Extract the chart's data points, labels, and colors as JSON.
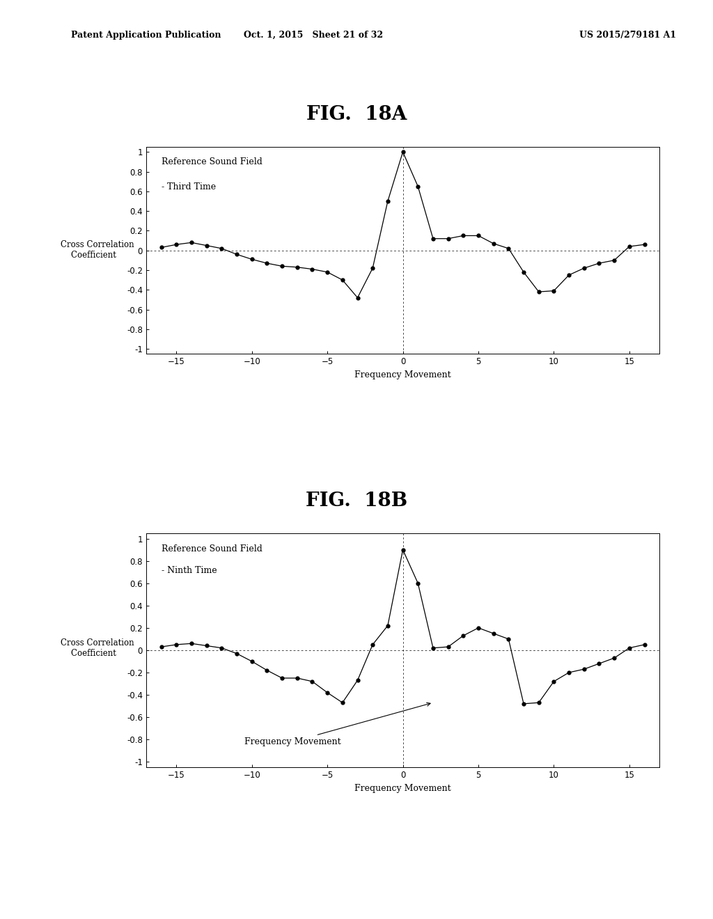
{
  "fig18a_title": "FIG.  18A",
  "fig18b_title": "FIG.  18B",
  "ylabel": "Cross Correlation\n  Coefficient",
  "xlabel": "Frequency Movement",
  "fig18a_label1": "Reference Sound Field",
  "fig18a_label2": "- Third Time",
  "fig18b_label1": "Reference Sound Field",
  "fig18b_label2": "- Ninth Time",
  "fig18b_annotation": "Frequency Movement",
  "xlim": [
    -17,
    17
  ],
  "ylim": [
    -1.05,
    1.05
  ],
  "yticks": [
    -1,
    -0.8,
    -0.6,
    -0.4,
    -0.2,
    0,
    0.2,
    0.4,
    0.6,
    0.8,
    1
  ],
  "xticks": [
    -15,
    -10,
    -5,
    0,
    5,
    10,
    15
  ],
  "fig18a_x": [
    -16,
    -15,
    -14,
    -13,
    -12,
    -11,
    -10,
    -9,
    -8,
    -7,
    -6,
    -5,
    -4,
    -3,
    -2,
    -1,
    0,
    1,
    2,
    3,
    4,
    5,
    6,
    7,
    8,
    9,
    10,
    11,
    12,
    13,
    14,
    15,
    16
  ],
  "fig18a_y": [
    0.03,
    0.06,
    0.08,
    0.05,
    0.02,
    -0.04,
    -0.09,
    -0.13,
    -0.16,
    -0.17,
    -0.19,
    -0.22,
    -0.3,
    -0.48,
    -0.18,
    0.5,
    1.0,
    0.65,
    0.12,
    0.12,
    0.15,
    0.15,
    0.07,
    0.02,
    -0.22,
    -0.42,
    -0.41,
    -0.25,
    -0.18,
    -0.13,
    -0.1,
    0.04,
    0.06
  ],
  "fig18b_x": [
    -16,
    -15,
    -14,
    -13,
    -12,
    -11,
    -10,
    -9,
    -8,
    -7,
    -6,
    -5,
    -4,
    -3,
    -2,
    -1,
    0,
    1,
    2,
    3,
    4,
    5,
    6,
    7,
    8,
    9,
    10,
    11,
    12,
    13,
    14,
    15,
    16
  ],
  "fig18b_y": [
    0.03,
    0.05,
    0.06,
    0.04,
    0.02,
    -0.03,
    -0.1,
    -0.18,
    -0.25,
    -0.25,
    -0.28,
    -0.38,
    -0.47,
    -0.27,
    0.05,
    0.22,
    0.9,
    0.6,
    0.02,
    0.03,
    0.13,
    0.2,
    0.15,
    0.1,
    -0.48,
    -0.47,
    -0.28,
    -0.2,
    -0.17,
    -0.12,
    -0.07,
    0.02,
    0.05
  ],
  "background_color": "#ffffff",
  "line_color": "#000000",
  "dot_color": "#000000",
  "header_text_left": "Patent Application Publication",
  "header_text_mid": "Oct. 1, 2015   Sheet 21 of 32",
  "header_text_right": "US 2015/279181 A1"
}
